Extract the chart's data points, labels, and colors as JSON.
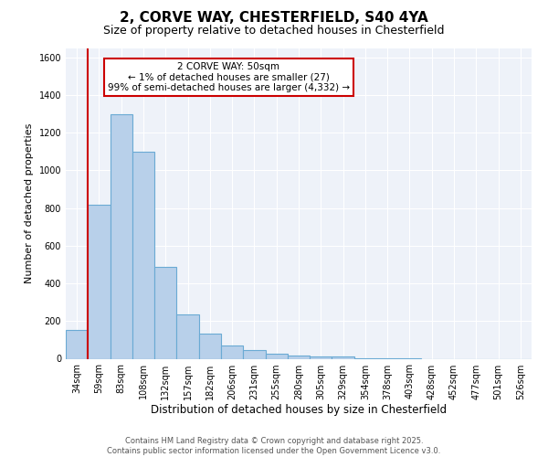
{
  "title1": "2, CORVE WAY, CHESTERFIELD, S40 4YA",
  "title2": "Size of property relative to detached houses in Chesterfield",
  "xlabel": "Distribution of detached houses by size in Chesterfield",
  "ylabel": "Number of detached properties",
  "categories": [
    "34sqm",
    "59sqm",
    "83sqm",
    "108sqm",
    "132sqm",
    "157sqm",
    "182sqm",
    "206sqm",
    "231sqm",
    "255sqm",
    "280sqm",
    "305sqm",
    "329sqm",
    "354sqm",
    "378sqm",
    "403sqm",
    "428sqm",
    "452sqm",
    "477sqm",
    "501sqm",
    "526sqm"
  ],
  "values": [
    155,
    820,
    1300,
    1100,
    490,
    235,
    135,
    70,
    45,
    25,
    15,
    10,
    12,
    3,
    3,
    2,
    0,
    0,
    0,
    0,
    0
  ],
  "bar_color": "#b8d0ea",
  "bar_edge_color": "#6aaad4",
  "vline_color": "#cc0000",
  "vline_x": 0.5,
  "annotation_text": "2 CORVE WAY: 50sqm\n← 1% of detached houses are smaller (27)\n99% of semi-detached houses are larger (4,332) →",
  "annotation_box_color": "#ffffff",
  "annotation_box_edge": "#cc0000",
  "ylim": [
    0,
    1650
  ],
  "yticks": [
    0,
    200,
    400,
    600,
    800,
    1000,
    1200,
    1400,
    1600
  ],
  "footer1": "Contains HM Land Registry data © Crown copyright and database right 2025.",
  "footer2": "Contains public sector information licensed under the Open Government Licence v3.0.",
  "bg_color": "#eef2f9",
  "fig_bg_color": "#ffffff",
  "grid_color": "#ffffff",
  "title1_fontsize": 11,
  "title2_fontsize": 9,
  "ylabel_fontsize": 8,
  "xlabel_fontsize": 8.5,
  "tick_fontsize": 7,
  "annotation_fontsize": 7.5,
  "footer_fontsize": 6
}
